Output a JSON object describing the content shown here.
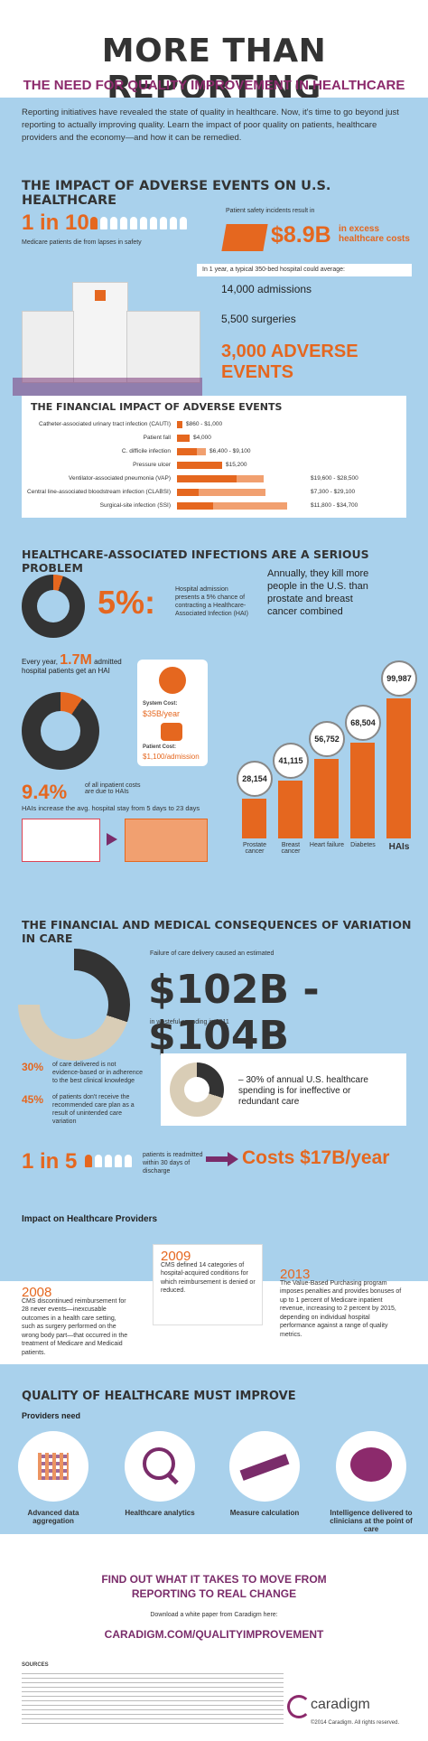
{
  "header": {
    "title": "MORE THAN REPORTING",
    "subtitle": "THE NEED FOR QUALITY IMPROVEMENT IN HEALTHCARE"
  },
  "intro": "Reporting initiatives have revealed the state of quality in healthcare. Now, it's time to go beyond just reporting to actually improving quality. Learn the impact of poor quality on patients, healthcare providers and the economy—and how it can be remedied.",
  "impact": {
    "heading": "THE IMPACT OF ADVERSE EVENTS ON U.S. HEALTHCARE",
    "ratio": "1 in 10",
    "ratio_caption": "Medicare patients die from lapses in safety",
    "safety_caption": "Patient safety incidents result in",
    "cost": "$8.9B",
    "cost_caption": "in excess healthcare costs",
    "year_caption": "In 1 year, a typical 350-bed hospital could average:",
    "admissions": "14,000 admissions",
    "surgeries": "5,500 surgeries",
    "adverse": "3,000 ADVERSE EVENTS"
  },
  "financial": {
    "heading": "THE FINANCIAL IMPACT OF ADVERSE EVENTS",
    "rows": [
      {
        "label": "Catheter-associated urinary tract infection (CAUTI)",
        "value": "$860 - $1,000"
      },
      {
        "label": "Patient fall",
        "value": "$4,000"
      },
      {
        "label": "C. difficile infection",
        "value": "$6,400 - $9,100"
      },
      {
        "label": "Pressure ulcer",
        "value": "$15,200"
      },
      {
        "label": "Ventilator-associated pneumonia (VAP)",
        "value": "$19,600 - $28,500"
      },
      {
        "label": "Central line-associated bloodstream infection (CLABSI)",
        "value": "$7,300 - $29,100"
      },
      {
        "label": "Surgical-site infection (SSI)",
        "value": "$11,800 - $34,700"
      }
    ]
  },
  "hai": {
    "heading": "HEALTHCARE-ASSOCIATED INFECTIONS ARE A SERIOUS PROBLEM",
    "pct5": "5%:",
    "pct5_caption": "Hospital admission presents a 5% chance of contracting a Healthcare-Associated Infection (HAI)",
    "annual": "Annually, they kill more people in the U.S. than prostate and breast cancer combined",
    "every_year_a": "Every year,",
    "every_year_num": "1.7M",
    "every_year_b": "admitted hospital patients get an HAI",
    "system_cost_label": "System Cost:",
    "system_cost": "$35B/year",
    "patient_cost_label": "Patient Cost:",
    "patient_cost": "$1,100/admission",
    "pct94": "9.4%",
    "pct94_caption": "of all inpatient costs are due to HAIs",
    "stay": "HAIs increase the avg. hospital stay from 5 days to 23 days"
  },
  "chart_data": {
    "type": "bar",
    "categories": [
      "Prostate cancer",
      "Breast cancer",
      "Heart failure",
      "Diabetes",
      "HAIs"
    ],
    "values": [
      28154,
      41115,
      56752,
      68504,
      99987
    ],
    "labels": [
      "28,154",
      "41,115",
      "56,752",
      "68,504",
      "99,987"
    ],
    "title": "",
    "xlabel": "",
    "ylabel": ""
  },
  "variation": {
    "heading": "THE FINANCIAL AND MEDICAL CONSEQUENCES OF VARIATION IN CARE",
    "failure_caption": "Failure of care delivery caused an estimated",
    "range": "$102B - $104B",
    "wasteful": "in wasteful spending in 2011",
    "p30": "30%",
    "p30_caption": "of care delivered is not evidence-based or in adherence to the best clinical knowledge",
    "p45": "45%",
    "p45_caption": "of patients don't receive the recommended care plan as a result of unintended care variation",
    "annual_spend": "– 30% of annual U.S. healthcare spending is for ineffective or redundant care",
    "readmit_ratio": "1 in 5",
    "readmit_caption": "patients is readmitted within 30 days of discharge",
    "costs": "Costs $17B/year"
  },
  "providers": {
    "heading": "Impact on Healthcare Providers",
    "items": [
      {
        "year": "2008",
        "text": "CMS discontinued reimbursement for 28 never events—inexcusable outcomes in a health care setting, such as surgery performed on the wrong body part—that occurred in the treatment of Medicare and Medicaid patients."
      },
      {
        "year": "2009",
        "text": "CMS defined 14 categories of hospital-acquired conditions for which reimbursement is denied or reduced."
      },
      {
        "year": "2013",
        "text": "The Value-Based Purchasing program imposes penalties and provides bonuses of up to 1 percent of Medicare inpatient revenue, increasing to 2 percent by 2015, depending on individual hospital performance against a range of quality metrics."
      }
    ]
  },
  "quality": {
    "heading": "QUALITY OF HEALTHCARE MUST IMPROVE",
    "need": "Providers need",
    "items": [
      {
        "label": "Advanced data aggregation",
        "icon": "data-grid-icon"
      },
      {
        "label": "Healthcare analytics",
        "icon": "magnifier-chart-icon"
      },
      {
        "label": "Measure calculation",
        "icon": "ruler-icon"
      },
      {
        "label": "Intelligence delivered to clinicians at the point of care",
        "icon": "brain-icon"
      }
    ]
  },
  "footer": {
    "cta": "FIND OUT WHAT IT TAKES TO MOVE FROM REPORTING TO REAL CHANGE",
    "download": "Download a white paper from Caradigm here:",
    "url": "CARADIGM.COM/QUALITYIMPROVEMENT",
    "sources": "SOURCES",
    "logo": "caradigm",
    "copyright": "©2014 Caradigm. All rights reserved."
  },
  "colors": {
    "accent": "#e5671f",
    "purple": "#8c2a6c",
    "blue": "#a9d1ec",
    "dark": "#333333"
  }
}
